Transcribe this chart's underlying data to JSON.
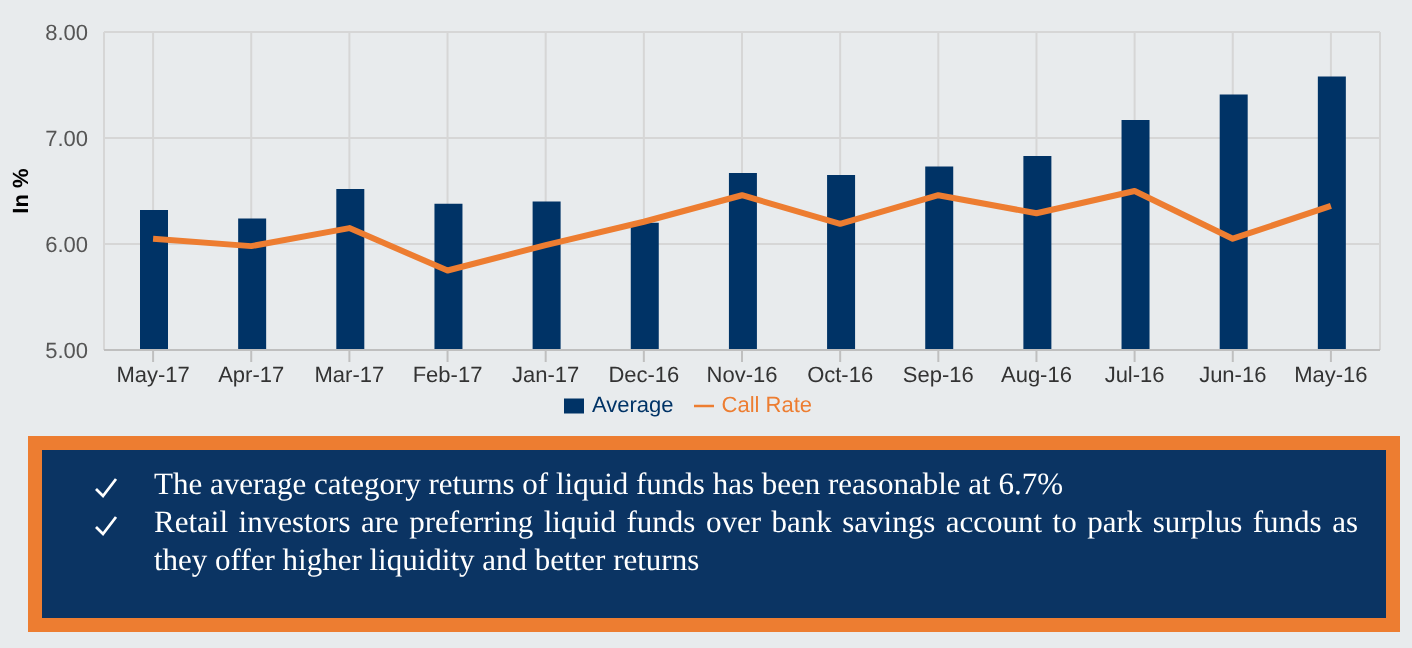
{
  "chart_data": {
    "type": "bar",
    "ylabel": "In %",
    "categories": [
      "May-17",
      "Apr-17",
      "Mar-17",
      "Feb-17",
      "Jan-17",
      "Dec-16",
      "Nov-16",
      "Oct-16",
      "Sep-16",
      "Aug-16",
      "Jul-16",
      "Jun-16",
      "May-16"
    ],
    "series": [
      {
        "name": "Average",
        "color": "#003366",
        "values": [
          6.32,
          6.24,
          6.52,
          6.38,
          6.4,
          6.2,
          6.67,
          6.65,
          6.73,
          6.83,
          7.17,
          7.41,
          7.58
        ]
      },
      {
        "name": "Call Rate",
        "type": "line",
        "color": "#ed7d31",
        "values": [
          6.05,
          5.98,
          6.15,
          5.75,
          5.99,
          6.21,
          6.46,
          6.19,
          6.46,
          6.29,
          6.5,
          6.05,
          6.36
        ]
      }
    ],
    "ylim": [
      5,
      8
    ],
    "yticks": [
      {
        "value": 5,
        "label": "5.00"
      },
      {
        "value": 6,
        "label": "6.00"
      },
      {
        "value": 7,
        "label": "7.00"
      },
      {
        "value": 8,
        "label": "8.00"
      }
    ],
    "grid": true,
    "legend": "bottom",
    "marker": "none",
    "annotations": [
      "The average category returns of liquid funds has been reasonable at 6.7%",
      "Retail investors are preferring liquid funds over bank savings account to park surplus funds as they offer higher liquidity and better returns"
    ]
  }
}
